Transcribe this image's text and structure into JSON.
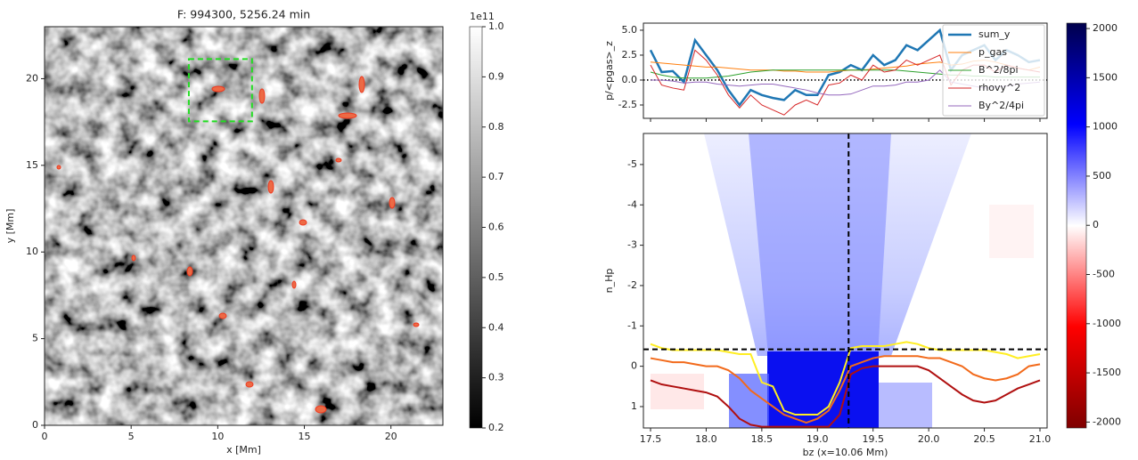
{
  "chart_data": [
    {
      "type": "image",
      "title": "F: 994300, 5256.24 min",
      "x_label": "x [Mm]",
      "y_label": "y [Mm]",
      "xlim": [
        0,
        23
      ],
      "ylim": [
        0,
        23
      ],
      "xticks": [
        0,
        5,
        10,
        15,
        20
      ],
      "yticks": [
        0,
        5,
        10,
        15,
        20
      ],
      "box": {
        "x": [
          8.33,
          11.98
        ],
        "y": [
          17.54,
          21.13
        ],
        "color": "#22dd22"
      },
      "colorbar": {
        "lim": [
          0.2,
          1.0
        ],
        "ticks": [
          0.2,
          0.3,
          0.4,
          0.5,
          0.6,
          0.7,
          0.8,
          0.9,
          {
            "value": 1.0,
            "label": "1.0"
          }
        ],
        "offset_label": "1e11",
        "colors": [
          "#000000",
          "#ffffff"
        ]
      }
    },
    {
      "type": "line",
      "y_label": "p/<pgas>_z",
      "xlim": [
        17.436,
        21.064
      ],
      "ylim": [
        -3.84,
        5.71
      ],
      "xticks": [
        17.5,
        18.0,
        18.5,
        19.0,
        19.5,
        20.0,
        20.5,
        21.0
      ],
      "yticks": [
        -2.5,
        {
          "value": 0,
          "label": "0.0"
        },
        2.5,
        {
          "value": 5,
          "label": "5.0"
        }
      ],
      "hline": 0,
      "legend": "upper right",
      "x": [
        17.5,
        17.6,
        17.7,
        17.8,
        17.9,
        18.0,
        18.1,
        18.2,
        18.3,
        18.4,
        18.5,
        18.6,
        18.7,
        18.8,
        18.9,
        19.0,
        19.1,
        19.2,
        19.3,
        19.4,
        19.5,
        19.6,
        19.7,
        19.8,
        19.9,
        20.0,
        20.1,
        20.2,
        20.3,
        20.4,
        20.5,
        20.6,
        20.7,
        20.8,
        20.9,
        21.0
      ],
      "series": [
        {
          "name": "sum_y",
          "color": "#1f77b4",
          "width": 2.5,
          "values": [
            3.0,
            0.8,
            0.9,
            -0.2,
            4.0,
            2.5,
            1.0,
            -1.0,
            -2.5,
            -1.0,
            -1.5,
            -1.8,
            -2.0,
            -1.0,
            -1.5,
            -1.5,
            0.5,
            0.8,
            1.5,
            1.0,
            2.5,
            1.5,
            2.0,
            3.5,
            3.0,
            4.0,
            5.0,
            1.0,
            2.5,
            3.0,
            3.5,
            2.0,
            3.0,
            2.5,
            1.8,
            2.0
          ]
        },
        {
          "name": "p_gas",
          "color": "#ff7f0e",
          "width": 1,
          "values": [
            1.8,
            1.7,
            1.6,
            1.5,
            1.4,
            1.3,
            1.3,
            1.2,
            1.1,
            1.0,
            1.0,
            1.0,
            0.9,
            0.9,
            0.8,
            0.8,
            0.8,
            0.9,
            1.0,
            1.0,
            1.1,
            1.2,
            1.3,
            1.4,
            1.6,
            1.7,
            1.8,
            1.5,
            1.6,
            1.9,
            2.0,
            1.8,
            1.5,
            1.2,
            1.0,
            1.3
          ]
        },
        {
          "name": "B^2/8pi",
          "color": "#2ca02c",
          "width": 1,
          "values": [
            0.8,
            0.5,
            0.3,
            0.2,
            0.2,
            0.2,
            0.3,
            0.4,
            0.6,
            0.8,
            0.9,
            1.0,
            1.0,
            1.0,
            1.0,
            1.0,
            1.0,
            1.0,
            1.0,
            1.0,
            1.0,
            1.0,
            1.0,
            0.9,
            0.8,
            0.7,
            0.6,
            0.5,
            0.5,
            0.4,
            0.4,
            0.3,
            0.3,
            0.3,
            0.3,
            0.3
          ]
        },
        {
          "name": "rhovy^2",
          "color": "#d62728",
          "width": 1,
          "values": [
            1.5,
            -0.5,
            -0.8,
            -1.0,
            3.0,
            2.0,
            0.5,
            -1.5,
            -2.8,
            -1.5,
            -2.5,
            -3.0,
            -3.5,
            -2.5,
            -2.0,
            -2.5,
            -0.5,
            -0.3,
            0.5,
            0.0,
            1.5,
            0.8,
            1.0,
            2.0,
            1.5,
            2.0,
            2.5,
            -0.5,
            1.0,
            1.5,
            1.5,
            0.8,
            1.5,
            1.2,
            1.0,
            0.8
          ]
        },
        {
          "name": "By^2/4pi",
          "color": "#9467bd",
          "width": 1,
          "values": [
            0.0,
            0.0,
            -0.1,
            -0.3,
            -0.2,
            -0.2,
            -0.4,
            -0.5,
            -0.6,
            -0.5,
            -0.4,
            -0.4,
            -0.6,
            -0.8,
            -1.0,
            -1.3,
            -1.5,
            -1.5,
            -1.4,
            -1.0,
            -0.6,
            -0.6,
            -0.5,
            -0.2,
            -0.2,
            0.0,
            1.0,
            -0.2,
            -0.4,
            -0.6,
            -0.8,
            -0.7,
            -0.6,
            -0.4,
            -0.3,
            -0.2
          ]
        }
      ]
    },
    {
      "type": "heatmap",
      "x_label": "bz (x=10.06 Mm)",
      "y_label": "n_Hp",
      "xlim": [
        17.436,
        21.064
      ],
      "ylim": [
        1.53,
        -5.77
      ],
      "xticks": [
        17.5,
        {
          "value": 18,
          "label": "18.0"
        },
        18.5,
        {
          "value": 19,
          "label": "19.0"
        },
        19.5,
        {
          "value": 20,
          "label": "20.0"
        },
        20.5,
        {
          "value": 21,
          "label": "21.0"
        }
      ],
      "yticks": [
        -5,
        -4,
        -3,
        -2,
        -1,
        0,
        1
      ],
      "crosshair": {
        "x": 19.28,
        "y": -0.42
      },
      "x": [
        17.5,
        17.6,
        17.7,
        17.8,
        17.9,
        18.0,
        18.1,
        18.2,
        18.3,
        18.4,
        18.5,
        18.6,
        18.7,
        18.8,
        18.9,
        19.0,
        19.1,
        19.2,
        19.3,
        19.4,
        19.5,
        19.6,
        19.7,
        19.8,
        19.9,
        20.0,
        20.1,
        20.2,
        20.3,
        20.4,
        20.5,
        20.6,
        20.7,
        20.8,
        20.9,
        21.0
      ],
      "series": [
        {
          "color": "#ffee22",
          "values": [
            -0.55,
            -0.45,
            -0.4,
            -0.4,
            -0.4,
            -0.4,
            -0.4,
            -0.35,
            -0.3,
            -0.3,
            0.4,
            0.5,
            1.1,
            1.2,
            1.2,
            1.2,
            1.0,
            0.4,
            -0.45,
            -0.5,
            -0.5,
            -0.5,
            -0.55,
            -0.6,
            -0.55,
            -0.45,
            -0.4,
            -0.4,
            -0.4,
            -0.4,
            -0.4,
            -0.35,
            -0.3,
            -0.2,
            -0.25,
            -0.3
          ]
        },
        {
          "color": "#f26a1b",
          "values": [
            -0.2,
            -0.15,
            -0.1,
            -0.1,
            -0.05,
            0.0,
            0.0,
            0.1,
            0.3,
            0.6,
            0.8,
            1.0,
            1.2,
            1.3,
            1.4,
            1.3,
            1.1,
            0.6,
            0.0,
            -0.1,
            -0.2,
            -0.25,
            -0.25,
            -0.25,
            -0.25,
            -0.2,
            -0.2,
            -0.1,
            0.0,
            0.2,
            0.3,
            0.35,
            0.3,
            0.2,
            0.0,
            -0.05
          ]
        },
        {
          "color": "#b01010",
          "values": [
            0.35,
            0.45,
            0.5,
            0.55,
            0.6,
            0.65,
            0.75,
            1.0,
            1.3,
            1.45,
            1.5,
            1.5,
            1.5,
            1.5,
            1.5,
            1.5,
            1.5,
            1.2,
            0.2,
            0.05,
            0.0,
            0.0,
            0.0,
            0.0,
            0.0,
            0.1,
            0.3,
            0.5,
            0.7,
            0.85,
            0.9,
            0.85,
            0.7,
            0.55,
            0.45,
            0.35
          ]
        }
      ],
      "colorbar": {
        "lim": [
          -2060,
          2055
        ],
        "ticks": [
          -2000,
          -1500,
          -1000,
          -500,
          0,
          500,
          1000,
          1500,
          2000
        ],
        "colors": [
          "#7f0000",
          "#ff0000",
          "#ffffff",
          "#0000ff",
          "#00004c"
        ]
      }
    }
  ]
}
